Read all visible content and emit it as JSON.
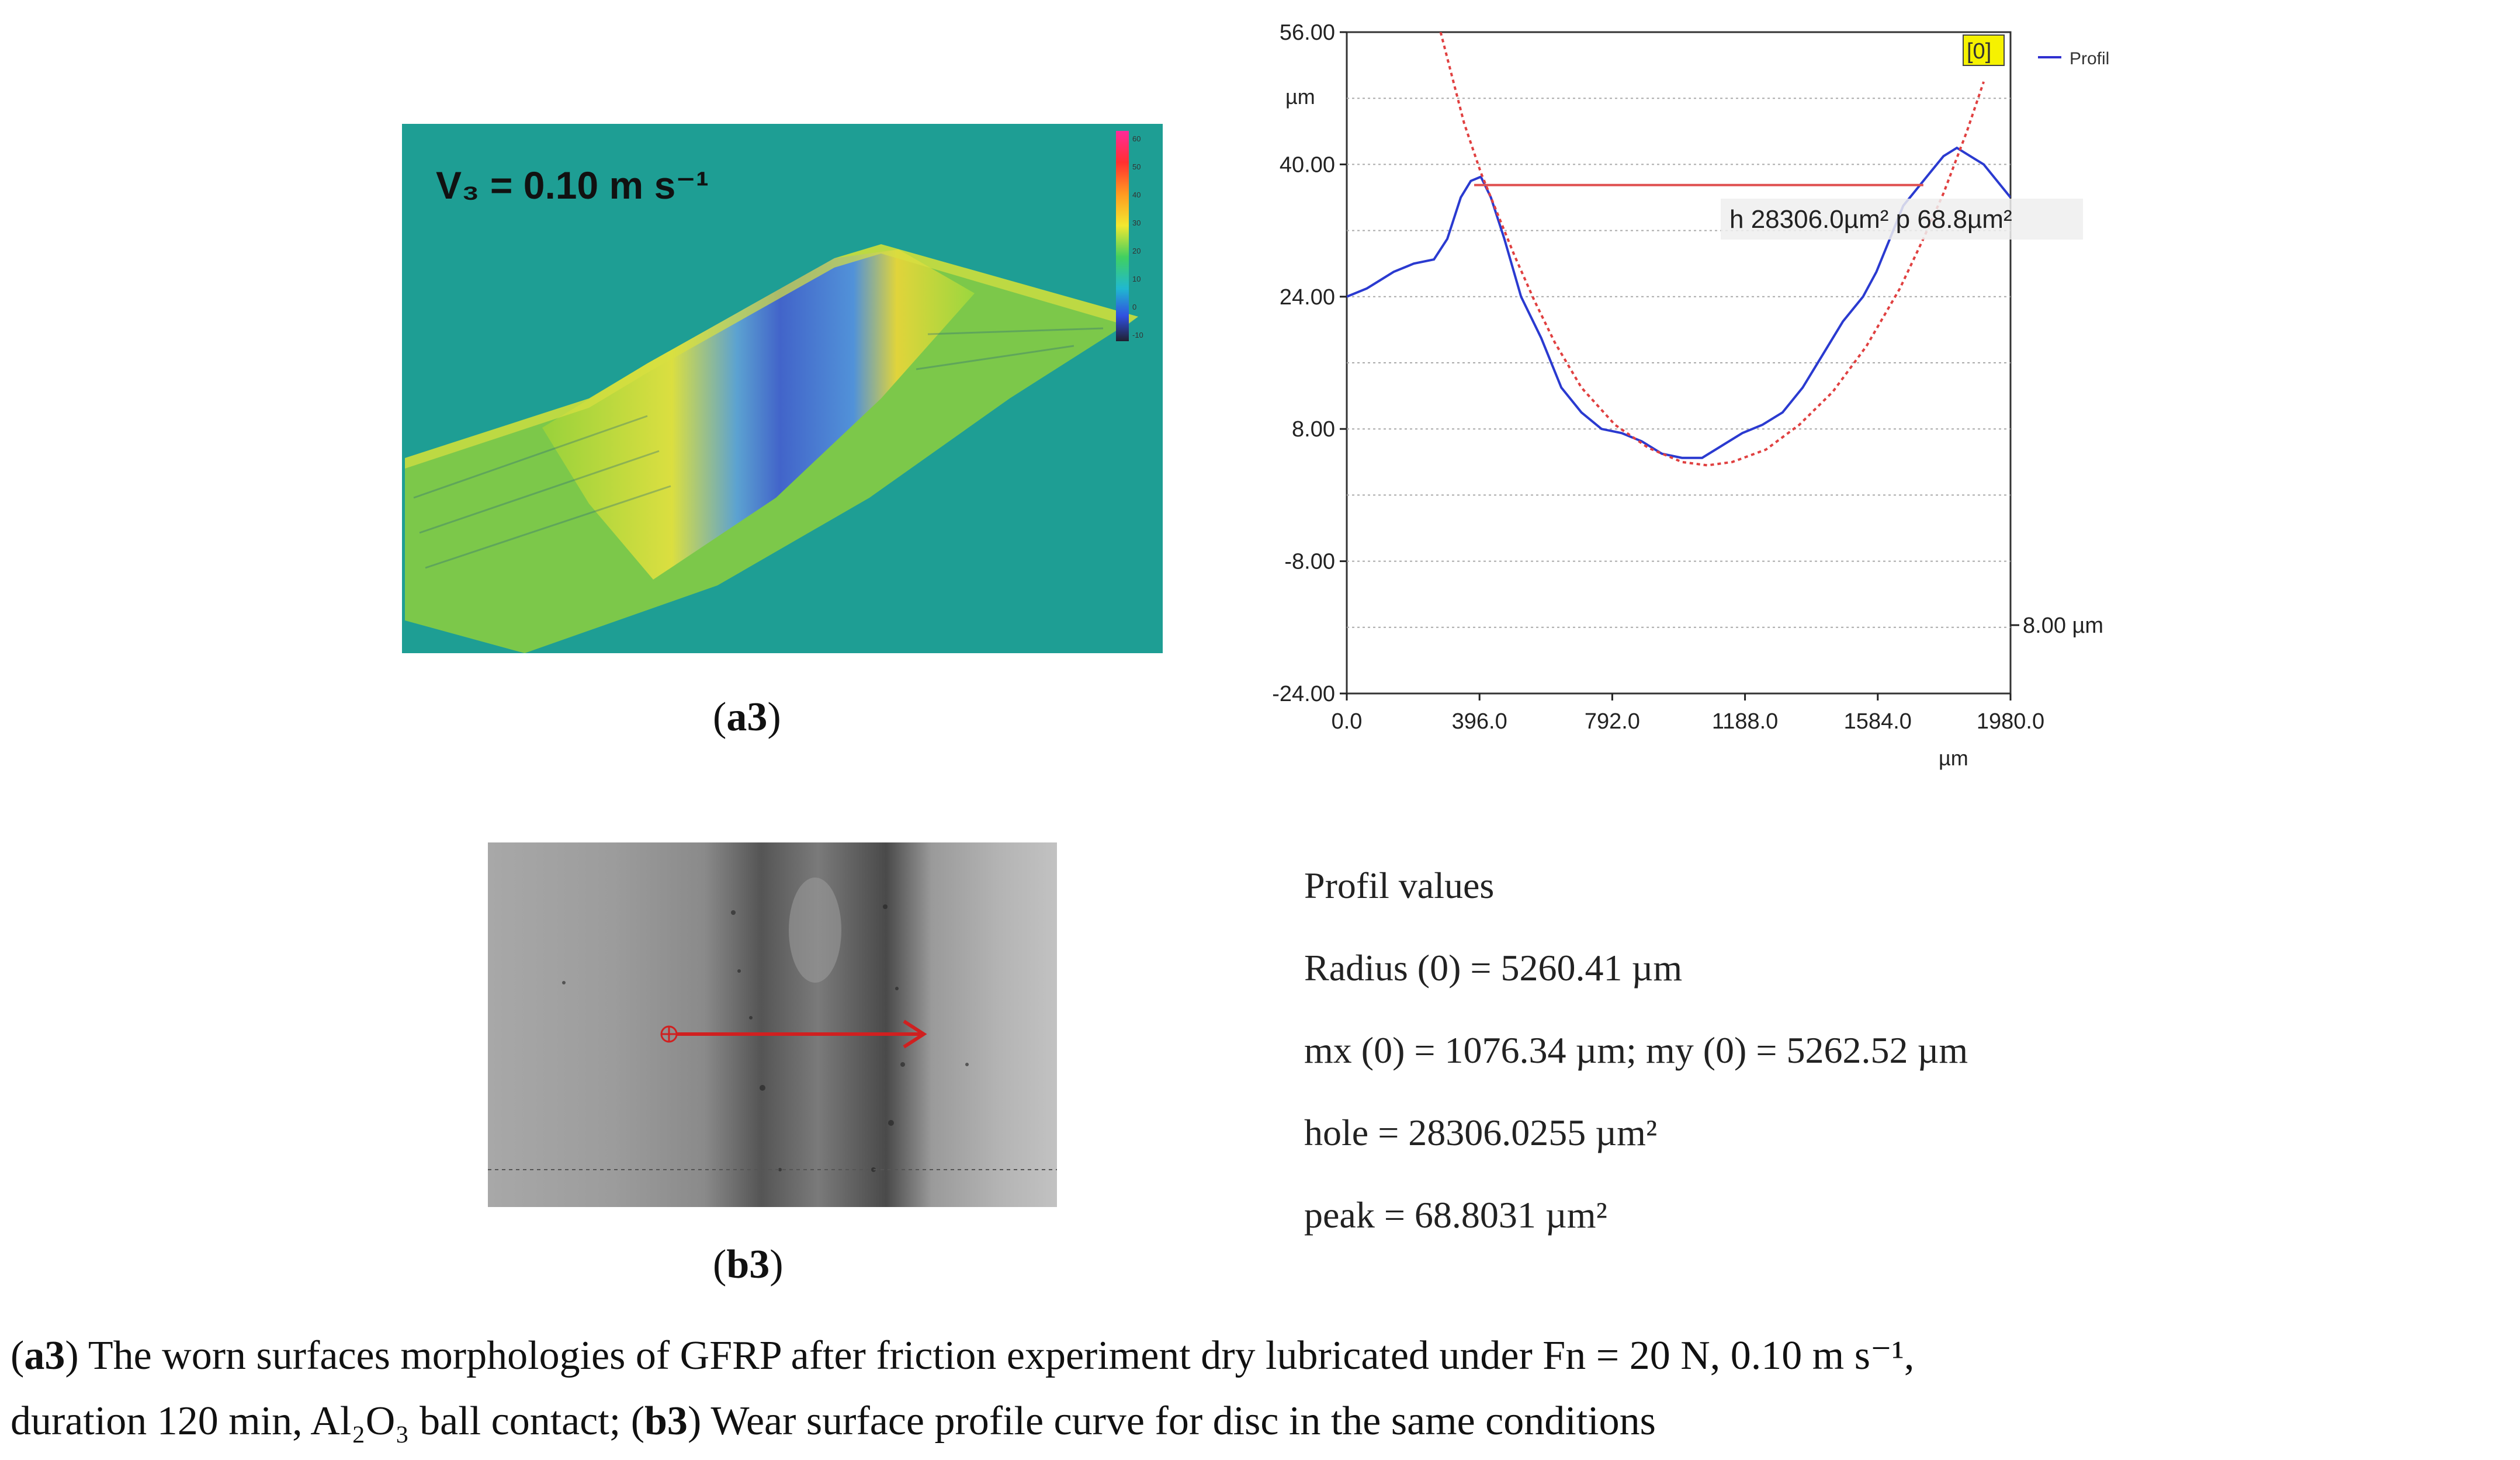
{
  "figure_a3": {
    "velocity_label": "V₃ = 0.10 m s⁻¹",
    "colorbar_ticks": [
      "60",
      "50",
      "40",
      "30",
      "20",
      "10",
      "0",
      "-10"
    ],
    "panel_label": "a3"
  },
  "figure_b3": {
    "panel_label": "b3"
  },
  "chart_data": {
    "type": "line",
    "title": "",
    "xlabel": "µm",
    "ylabel": "µm",
    "xlim": [
      0,
      1980
    ],
    "ylim": [
      -24,
      56
    ],
    "x_ticks": [
      "0.0",
      "396.0",
      "792.0",
      "1188.0",
      "1584.0",
      "1980.0"
    ],
    "y_ticks": [
      "56.00",
      "40.00",
      "24.00",
      "8.00",
      "-8.00",
      "-24.00"
    ],
    "legend": [
      "Profil"
    ],
    "marker_label": "[0]",
    "annotation": "h 28306.0µm²  p 68.8µm²",
    "right_scale_label": "8.00 µm",
    "reference_level_y": 37.5,
    "series": [
      {
        "name": "Profil",
        "x": [
          0,
          60,
          100,
          140,
          200,
          260,
          300,
          340,
          370,
          400,
          430,
          470,
          520,
          580,
          640,
          700,
          760,
          820,
          880,
          940,
          1000,
          1060,
          1120,
          1180,
          1240,
          1300,
          1360,
          1420,
          1480,
          1540,
          1580,
          1620,
          1660,
          1700,
          1740,
          1780,
          1820,
          1860,
          1900,
          1940,
          1980
        ],
        "y": [
          24,
          25,
          26,
          27,
          28,
          28.5,
          31,
          36,
          38,
          38.5,
          36,
          31,
          24,
          19,
          13,
          10,
          8,
          7.5,
          6.5,
          5,
          4.5,
          4.5,
          6,
          7.5,
          8.5,
          10,
          13,
          17,
          21,
          24,
          27,
          31,
          35,
          37,
          39,
          41,
          42,
          41,
          40,
          38,
          36
        ]
      },
      {
        "name": "Fit circle",
        "x": [
          280,
          350,
          400,
          450,
          500,
          560,
          620,
          700,
          800,
          900,
          1000,
          1076,
          1150,
          1250,
          1350,
          1450,
          1550,
          1650,
          1720,
          1780,
          1850,
          1900
        ],
        "y": [
          56,
          45,
          39,
          34,
          29,
          23.5,
          18.5,
          13,
          8.5,
          5.7,
          4,
          3.6,
          4,
          5.5,
          8.5,
          12.5,
          18,
          25,
          31,
          36.5,
          44,
          50
        ]
      }
    ]
  },
  "profil_values": {
    "title": "Profil values",
    "radius": "Radius (0) = 5260.41 µm",
    "mx_my": "mx (0) = 1076.34 µm; my (0) = 5262.52 µm",
    "hole": "hole = 28306.0255 µm²",
    "peak": "peak = 68.8031 µm²"
  },
  "caption": {
    "a_label": "a3",
    "a_text": ") The worn surfaces morphologies of GFRP after friction experiment dry lubricated under Fn = 20 N, 0.10 m s⁻¹,",
    "a_text2": "duration 120 min, Al₂O₃ ball contact; (",
    "b_label": "b3",
    "b_text": ") Wear surface profile curve for disc in the same conditions"
  }
}
